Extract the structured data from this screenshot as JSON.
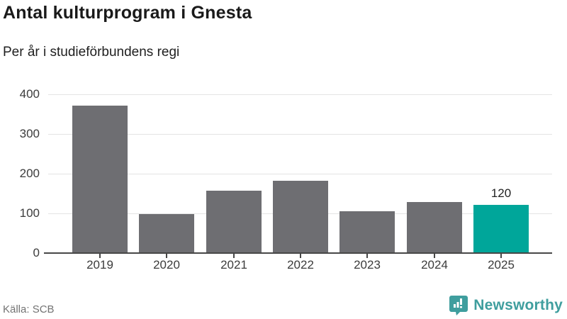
{
  "header": {
    "title": "Antal kulturprogram i Gnesta",
    "subtitle": "Per år i studieförbundens regi"
  },
  "chart_data": {
    "type": "bar",
    "title": "Antal kulturprogram i Gnesta",
    "subtitle": "Per år i studieförbundens regi",
    "categories": [
      "2019",
      "2020",
      "2021",
      "2022",
      "2023",
      "2024",
      "2025"
    ],
    "values": [
      370,
      97,
      156,
      180,
      104,
      127,
      120
    ],
    "highlight_index": 6,
    "highlight_value_label": "120",
    "xlabel": "",
    "ylabel": "",
    "ylim": [
      0,
      400
    ],
    "yticks": [
      0,
      100,
      200,
      300,
      400
    ],
    "grid": true,
    "legend": "none",
    "bar_color": "#6e6e72",
    "highlight_color": "#00a69a"
  },
  "footer": {
    "source": "Källa: SCB",
    "brand": "Newsworthy"
  },
  "colors": {
    "grid": "#e4e4e4",
    "axis": "#474747",
    "tick_text": "#3c3c3c",
    "brand_teal": "#3f9e9e"
  }
}
